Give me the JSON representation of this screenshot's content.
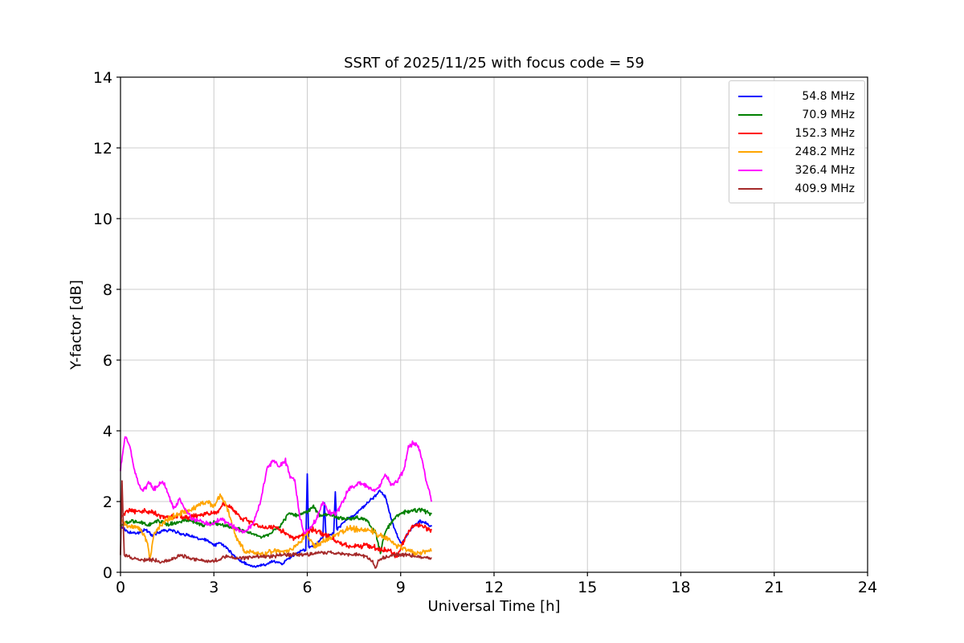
{
  "figure": {
    "background": "#ffffff"
  },
  "chart_data": {
    "type": "line",
    "title": "SSRT of 2025/11/25 with focus code = 59",
    "xlabel": "Universal Time [h]",
    "ylabel": "Y-factor [dB]",
    "xlim": [
      0,
      24
    ],
    "ylim": [
      0,
      14
    ],
    "xticks": [
      0,
      3,
      6,
      9,
      12,
      15,
      18,
      21,
      24
    ],
    "yticks": [
      0,
      2,
      4,
      6,
      8,
      10,
      12,
      14
    ],
    "grid": true,
    "grid_color": "#cccccc",
    "axes_color": "#000000",
    "legend_position": "upper right",
    "series": [
      {
        "label": "54.8 MHz",
        "color": "#0000ff",
        "noise": 0.05,
        "points": [
          [
            0,
            1.3
          ],
          [
            0.2,
            1.15
          ],
          [
            0.5,
            1.1
          ],
          [
            0.8,
            1.2
          ],
          [
            1.0,
            1.05
          ],
          [
            1.3,
            1.15
          ],
          [
            1.6,
            1.2
          ],
          [
            1.9,
            1.1
          ],
          [
            2.2,
            1.05
          ],
          [
            2.5,
            0.95
          ],
          [
            2.8,
            0.9
          ],
          [
            3.0,
            0.75
          ],
          [
            3.2,
            0.85
          ],
          [
            3.5,
            0.6
          ],
          [
            3.8,
            0.35
          ],
          [
            4.0,
            0.25
          ],
          [
            4.3,
            0.15
          ],
          [
            4.6,
            0.2
          ],
          [
            4.9,
            0.3
          ],
          [
            5.2,
            0.25
          ],
          [
            5.5,
            0.45
          ],
          [
            5.8,
            0.6
          ],
          [
            5.95,
            0.65
          ],
          [
            6.0,
            2.75
          ],
          [
            6.05,
            0.7
          ],
          [
            6.3,
            0.8
          ],
          [
            6.5,
            1.0
          ],
          [
            6.55,
            2.0
          ],
          [
            6.6,
            1.0
          ],
          [
            6.85,
            1.1
          ],
          [
            6.9,
            2.3
          ],
          [
            6.95,
            1.2
          ],
          [
            7.2,
            1.45
          ],
          [
            7.5,
            1.6
          ],
          [
            7.8,
            1.85
          ],
          [
            8.1,
            2.1
          ],
          [
            8.35,
            2.3
          ],
          [
            8.5,
            2.15
          ],
          [
            8.7,
            1.5
          ],
          [
            8.9,
            1.0
          ],
          [
            9.05,
            0.8
          ],
          [
            9.2,
            1.05
          ],
          [
            9.4,
            1.3
          ],
          [
            9.6,
            1.45
          ],
          [
            9.8,
            1.4
          ],
          [
            10.0,
            1.3
          ]
        ]
      },
      {
        "label": "70.9 MHz",
        "color": "#008000",
        "noise": 0.07,
        "points": [
          [
            0,
            1.3
          ],
          [
            0.3,
            1.45
          ],
          [
            0.6,
            1.4
          ],
          [
            0.9,
            1.35
          ],
          [
            1.2,
            1.45
          ],
          [
            1.5,
            1.35
          ],
          [
            1.8,
            1.4
          ],
          [
            2.1,
            1.5
          ],
          [
            2.4,
            1.4
          ],
          [
            2.7,
            1.35
          ],
          [
            3.0,
            1.4
          ],
          [
            3.3,
            1.35
          ],
          [
            3.6,
            1.25
          ],
          [
            3.9,
            1.2
          ],
          [
            4.2,
            1.1
          ],
          [
            4.5,
            1.0
          ],
          [
            4.8,
            1.1
          ],
          [
            5.1,
            1.3
          ],
          [
            5.4,
            1.65
          ],
          [
            5.7,
            1.6
          ],
          [
            6.0,
            1.7
          ],
          [
            6.2,
            1.85
          ],
          [
            6.4,
            1.6
          ],
          [
            6.7,
            1.65
          ],
          [
            7.0,
            1.55
          ],
          [
            7.3,
            1.5
          ],
          [
            7.6,
            1.55
          ],
          [
            7.9,
            1.5
          ],
          [
            8.2,
            1.1
          ],
          [
            8.35,
            0.55
          ],
          [
            8.5,
            1.15
          ],
          [
            8.8,
            1.55
          ],
          [
            9.1,
            1.7
          ],
          [
            9.4,
            1.75
          ],
          [
            9.7,
            1.75
          ],
          [
            10.0,
            1.65
          ]
        ]
      },
      {
        "label": "152.3 MHz",
        "color": "#ff0000",
        "noise": 0.09,
        "points": [
          [
            0,
            1.55
          ],
          [
            0.25,
            1.75
          ],
          [
            0.5,
            1.7
          ],
          [
            0.75,
            1.75
          ],
          [
            1.0,
            1.7
          ],
          [
            1.3,
            1.6
          ],
          [
            1.6,
            1.55
          ],
          [
            1.9,
            1.6
          ],
          [
            2.2,
            1.55
          ],
          [
            2.5,
            1.6
          ],
          [
            2.8,
            1.65
          ],
          [
            3.1,
            1.7
          ],
          [
            3.3,
            1.95
          ],
          [
            3.5,
            1.85
          ],
          [
            3.8,
            1.6
          ],
          [
            4.1,
            1.45
          ],
          [
            4.4,
            1.3
          ],
          [
            4.7,
            1.25
          ],
          [
            5.0,
            1.3
          ],
          [
            5.3,
            1.1
          ],
          [
            5.6,
            0.95
          ],
          [
            5.9,
            1.1
          ],
          [
            6.2,
            1.2
          ],
          [
            6.5,
            1.1
          ],
          [
            6.8,
            0.95
          ],
          [
            7.1,
            0.8
          ],
          [
            7.4,
            0.7
          ],
          [
            7.7,
            0.75
          ],
          [
            8.0,
            0.75
          ],
          [
            8.3,
            0.65
          ],
          [
            8.6,
            0.6
          ],
          [
            8.9,
            0.45
          ],
          [
            9.1,
            0.9
          ],
          [
            9.3,
            1.2
          ],
          [
            9.5,
            1.35
          ],
          [
            9.7,
            1.3
          ],
          [
            10.0,
            1.2
          ]
        ]
      },
      {
        "label": "248.2 MHz",
        "color": "#ffa500",
        "noise": 0.1,
        "points": [
          [
            0,
            1.45
          ],
          [
            0.3,
            1.3
          ],
          [
            0.6,
            1.25
          ],
          [
            0.85,
            0.9
          ],
          [
            0.95,
            0.35
          ],
          [
            1.05,
            1.0
          ],
          [
            1.3,
            1.35
          ],
          [
            1.6,
            1.55
          ],
          [
            1.9,
            1.65
          ],
          [
            2.2,
            1.75
          ],
          [
            2.5,
            1.9
          ],
          [
            2.8,
            2.0
          ],
          [
            3.0,
            1.85
          ],
          [
            3.2,
            2.2
          ],
          [
            3.4,
            1.9
          ],
          [
            3.6,
            1.3
          ],
          [
            3.8,
            0.85
          ],
          [
            4.0,
            0.6
          ],
          [
            4.3,
            0.55
          ],
          [
            4.6,
            0.5
          ],
          [
            4.9,
            0.6
          ],
          [
            5.2,
            0.6
          ],
          [
            5.5,
            0.65
          ],
          [
            5.8,
            0.9
          ],
          [
            6.0,
            1.1
          ],
          [
            6.2,
            0.75
          ],
          [
            6.5,
            0.85
          ],
          [
            6.8,
            1.0
          ],
          [
            7.1,
            1.15
          ],
          [
            7.4,
            1.25
          ],
          [
            7.7,
            1.2
          ],
          [
            8.0,
            1.2
          ],
          [
            8.3,
            1.05
          ],
          [
            8.6,
            0.95
          ],
          [
            8.9,
            0.75
          ],
          [
            9.2,
            0.65
          ],
          [
            9.5,
            0.55
          ],
          [
            9.8,
            0.6
          ],
          [
            10.0,
            0.6
          ]
        ]
      },
      {
        "label": "326.4 MHz",
        "color": "#ff00ff",
        "noise": 0.08,
        "points": [
          [
            0,
            2.9
          ],
          [
            0.15,
            3.85
          ],
          [
            0.3,
            3.55
          ],
          [
            0.45,
            2.9
          ],
          [
            0.6,
            2.45
          ],
          [
            0.75,
            2.3
          ],
          [
            0.9,
            2.55
          ],
          [
            1.05,
            2.35
          ],
          [
            1.2,
            2.45
          ],
          [
            1.35,
            2.6
          ],
          [
            1.5,
            2.3
          ],
          [
            1.7,
            1.8
          ],
          [
            1.9,
            2.05
          ],
          [
            2.1,
            1.75
          ],
          [
            2.3,
            1.5
          ],
          [
            2.5,
            1.45
          ],
          [
            2.7,
            1.4
          ],
          [
            2.9,
            1.35
          ],
          [
            3.1,
            1.45
          ],
          [
            3.3,
            1.5
          ],
          [
            3.5,
            1.35
          ],
          [
            3.7,
            1.25
          ],
          [
            3.9,
            1.15
          ],
          [
            4.1,
            1.2
          ],
          [
            4.3,
            1.45
          ],
          [
            4.5,
            2.0
          ],
          [
            4.7,
            2.9
          ],
          [
            4.9,
            3.15
          ],
          [
            5.1,
            3.0
          ],
          [
            5.3,
            3.15
          ],
          [
            5.45,
            2.7
          ],
          [
            5.6,
            2.6
          ],
          [
            5.75,
            1.6
          ],
          [
            5.9,
            1.1
          ],
          [
            6.1,
            1.25
          ],
          [
            6.3,
            1.5
          ],
          [
            6.5,
            2.0
          ],
          [
            6.7,
            1.7
          ],
          [
            6.9,
            1.65
          ],
          [
            7.1,
            1.9
          ],
          [
            7.3,
            2.3
          ],
          [
            7.5,
            2.45
          ],
          [
            7.7,
            2.5
          ],
          [
            7.9,
            2.45
          ],
          [
            8.1,
            2.3
          ],
          [
            8.3,
            2.4
          ],
          [
            8.5,
            2.75
          ],
          [
            8.7,
            2.5
          ],
          [
            8.9,
            2.55
          ],
          [
            9.1,
            2.9
          ],
          [
            9.25,
            3.55
          ],
          [
            9.4,
            3.65
          ],
          [
            9.55,
            3.6
          ],
          [
            9.7,
            3.1
          ],
          [
            9.85,
            2.5
          ],
          [
            10.0,
            2.0
          ]
        ]
      },
      {
        "label": "409.9 MHz",
        "color": "#a52a2a",
        "noise": 0.06,
        "points": [
          [
            0,
            0.5
          ],
          [
            0.05,
            2.6
          ],
          [
            0.12,
            0.5
          ],
          [
            0.4,
            0.4
          ],
          [
            0.7,
            0.35
          ],
          [
            1.0,
            0.35
          ],
          [
            1.3,
            0.3
          ],
          [
            1.6,
            0.35
          ],
          [
            1.9,
            0.5
          ],
          [
            2.2,
            0.4
          ],
          [
            2.5,
            0.35
          ],
          [
            2.8,
            0.3
          ],
          [
            3.1,
            0.35
          ],
          [
            3.4,
            0.45
          ],
          [
            3.7,
            0.4
          ],
          [
            4.0,
            0.4
          ],
          [
            4.3,
            0.45
          ],
          [
            4.6,
            0.45
          ],
          [
            4.9,
            0.45
          ],
          [
            5.2,
            0.5
          ],
          [
            5.5,
            0.5
          ],
          [
            5.8,
            0.5
          ],
          [
            6.1,
            0.5
          ],
          [
            6.4,
            0.55
          ],
          [
            6.7,
            0.55
          ],
          [
            7.0,
            0.55
          ],
          [
            7.3,
            0.5
          ],
          [
            7.6,
            0.5
          ],
          [
            7.9,
            0.45
          ],
          [
            8.1,
            0.3
          ],
          [
            8.2,
            0.1
          ],
          [
            8.3,
            0.35
          ],
          [
            8.6,
            0.45
          ],
          [
            8.9,
            0.5
          ],
          [
            9.2,
            0.5
          ],
          [
            9.5,
            0.45
          ],
          [
            9.8,
            0.4
          ],
          [
            10.0,
            0.4
          ]
        ]
      }
    ]
  }
}
